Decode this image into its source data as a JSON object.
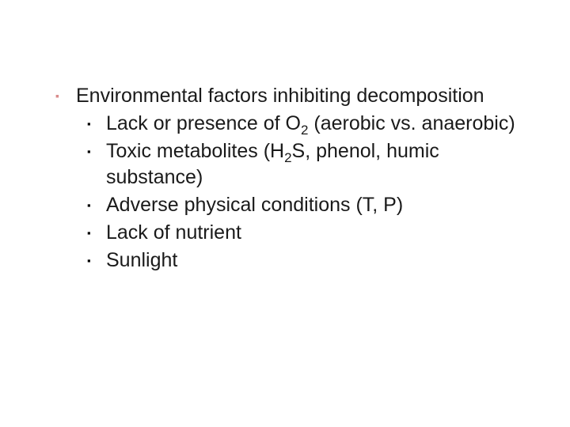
{
  "colors": {
    "bullet_color": "#d98b8b",
    "text_color": "#1a1a1a",
    "background": "#ffffff"
  },
  "typography": {
    "body_fontsize": 25,
    "line_height": 33,
    "subscript_scale": 0.68,
    "font_family": "Segoe UI"
  },
  "bullet_glyph": "▪",
  "outline": {
    "heading": {
      "text": "Environmental factors inhibiting decomposition"
    },
    "items": [
      {
        "pre": "Lack or presence of O",
        "sub": "2",
        "post": " (aerobic vs. anaerobic)"
      },
      {
        "pre": "Toxic metabolites (H",
        "sub": "2",
        "post": "S, phenol, humic substance)"
      },
      {
        "pre": "Adverse physical conditions (T, P)",
        "sub": "",
        "post": ""
      },
      {
        "pre": "Lack of nutrient",
        "sub": "",
        "post": ""
      },
      {
        "pre": "Sunlight",
        "sub": "",
        "post": ""
      }
    ]
  }
}
